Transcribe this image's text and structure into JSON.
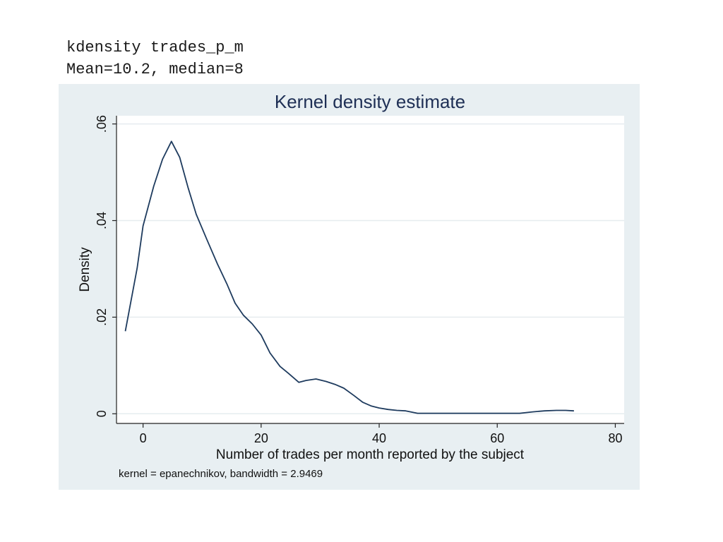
{
  "header": {
    "command": "kdensity trades_p_m",
    "stats": "Mean=10.2, median=8"
  },
  "colors": {
    "panel_background": "#e8eff2",
    "plot_background": "#ffffff",
    "title_color": "#1e2f55",
    "line_color": "#1e3b5e",
    "grid_color": "#e6ecef"
  },
  "chart_data": {
    "type": "line",
    "title": "Kernel density estimate",
    "xlabel": "Number of trades per month reported by the subject",
    "ylabel": "Density",
    "note": "kernel = epanechnikov, bandwidth = 2.9469",
    "xlim": [
      -4.5,
      81.5
    ],
    "ylim": [
      -0.002,
      0.0617
    ],
    "x_ticks": [
      0,
      20,
      40,
      60,
      80
    ],
    "x_tick_labels": [
      "0",
      "20",
      "40",
      "60",
      "80"
    ],
    "y_ticks": [
      0,
      0.02,
      0.04,
      0.06
    ],
    "y_tick_labels": [
      "0",
      ".02",
      ".04",
      ".06"
    ],
    "grid": true,
    "series": [
      {
        "x": [
          -3,
          -1,
          0,
          1.8,
          3.3,
          4.8,
          6.2,
          7.6,
          9,
          10.8,
          12.6,
          14.2,
          15.6,
          17,
          18.5,
          20,
          21.5,
          23.2,
          24.6,
          26.4,
          27.6,
          29.3,
          31,
          32.5,
          34,
          35.7,
          37.2,
          38.7,
          40,
          41.5,
          43,
          44.5,
          46.5,
          50,
          55,
          60,
          63.8,
          66,
          68,
          70,
          71.6,
          73
        ],
        "y": [
          0.0171,
          0.0302,
          0.0389,
          0.0471,
          0.0527,
          0.0564,
          0.0531,
          0.0469,
          0.0413,
          0.0361,
          0.031,
          0.0269,
          0.0229,
          0.0204,
          0.0186,
          0.0163,
          0.0126,
          0.0098,
          0.0084,
          0.0065,
          0.0069,
          0.0072,
          0.0067,
          0.0061,
          0.0053,
          0.0038,
          0.0024,
          0.0016,
          0.0012,
          0.0009,
          0.0007,
          0.0006,
          0.0001,
          0.0001,
          0.0001,
          0.0001,
          0.0001,
          0.0004,
          0.0006,
          0.0007,
          0.0007,
          0.0006
        ]
      }
    ]
  }
}
